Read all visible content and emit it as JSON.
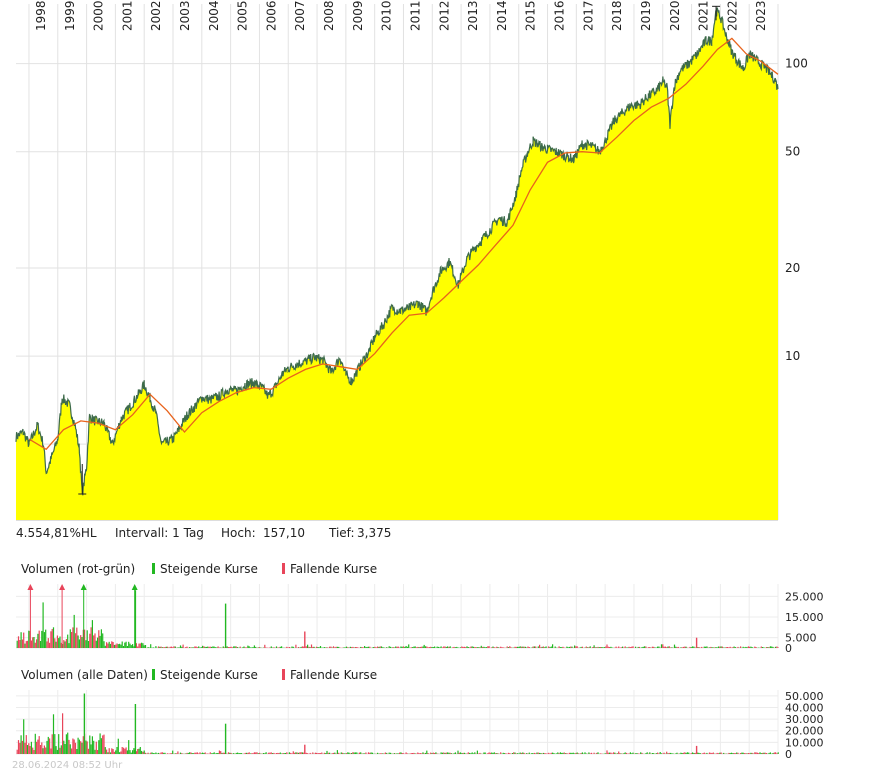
{
  "chart_data": [
    {
      "type": "area",
      "scale": "log",
      "x_ticks": [
        "1998",
        "1999",
        "2000",
        "2001",
        "2002",
        "2003",
        "2004",
        "2005",
        "2006",
        "2007",
        "2008",
        "2009",
        "2010",
        "2011",
        "2012",
        "2013",
        "2014",
        "2015",
        "2016",
        "2017",
        "2018",
        "2019",
        "2020",
        "2021",
        "2022",
        "2023"
      ],
      "y_ticks": [
        "100",
        "50",
        "20",
        "10"
      ],
      "y_tick_values": [
        100,
        50,
        20,
        10
      ],
      "x_range": [
        1997.55,
        2024.0
      ],
      "y_range": [
        2.75,
        160
      ],
      "series": [
        {
          "x": [
            1997.55,
            1997.8,
            1998.0,
            1998.3,
            1998.5,
            1998.6,
            1998.75,
            1999.0,
            1999.15,
            1999.4,
            1999.6,
            1999.75,
            1999.85,
            2000.0,
            2000.1,
            2000.3,
            2000.6,
            2000.9,
            2001.2,
            2001.5,
            2001.8,
            2002.0,
            2002.2,
            2002.4,
            2002.6,
            2002.8,
            2003.0,
            2003.2,
            2003.5,
            2003.8,
            2004.0,
            2004.3,
            2004.6,
            2004.9,
            2005.2,
            2005.5,
            2005.8,
            2006.1,
            2006.3,
            2006.5,
            2006.8,
            2007.0,
            2007.3,
            2007.6,
            2007.9,
            2008.2,
            2008.5,
            2008.8,
            2009.0,
            2009.2,
            2009.5,
            2009.8,
            2010.0,
            2010.3,
            2010.6,
            2010.9,
            2011.2,
            2011.5,
            2011.8,
            2012.0,
            2012.3,
            2012.6,
            2012.9,
            2013.2,
            2013.5,
            2013.8,
            2014.0,
            2014.3,
            2014.6,
            2014.9,
            2015.1,
            2015.3,
            2015.5,
            2015.8,
            2016.0,
            2016.3,
            2016.6,
            2016.9,
            2017.2,
            2017.5,
            2017.8,
            2018.0,
            2018.3,
            2018.6,
            2018.9,
            2019.2,
            2019.5,
            2019.8,
            2020.0,
            2020.15,
            2020.25,
            2020.4,
            2020.6,
            2020.9,
            2021.2,
            2021.5,
            2021.7,
            2021.85,
            2022.0,
            2022.2,
            2022.4,
            2022.6,
            2022.8,
            2023.0,
            2023.3,
            2023.6,
            2023.9,
            2024.0
          ],
          "y": [
            5.3,
            5.5,
            5.0,
            5.8,
            5.0,
            4.0,
            4.4,
            5.2,
            7.2,
            6.8,
            5.8,
            4.8,
            3.375,
            4.2,
            6.2,
            6.0,
            5.9,
            5.0,
            6.1,
            6.7,
            7.4,
            8.0,
            7.2,
            6.4,
            5.0,
            5.1,
            5.2,
            5.6,
            6.3,
            6.8,
            7.2,
            7.1,
            7.3,
            7.7,
            7.6,
            8.0,
            8.1,
            7.8,
            7.3,
            7.7,
            8.7,
            9.1,
            9.4,
            9.6,
            9.9,
            9.7,
            8.8,
            9.9,
            8.6,
            8.2,
            9.3,
            10.4,
            11.6,
            12.8,
            14.6,
            14.3,
            14.6,
            15.2,
            14.2,
            16.5,
            19.6,
            21.0,
            17.5,
            21.5,
            23.6,
            25.5,
            27.0,
            29.5,
            28.7,
            35.5,
            43.5,
            49.5,
            54.5,
            52.0,
            51.0,
            50.0,
            48.5,
            47.0,
            53.0,
            52.5,
            50.0,
            54.5,
            63.5,
            68.0,
            72.0,
            72.5,
            77.5,
            81.0,
            87.0,
            83.0,
            62.0,
            84.0,
            95.0,
            100.0,
            108.0,
            120.0,
            120.0,
            152.0,
            145.0,
            125.0,
            110.0,
            102.0,
            96.0,
            108.0,
            102.0,
            96.0,
            88.0,
            82.0
          ]
        },
        {
          "name": "moving average",
          "x": [
            1998.0,
            1998.6,
            1999.2,
            1999.8,
            2000.4,
            2001.0,
            2001.6,
            2002.2,
            2002.8,
            2003.4,
            2004.0,
            2004.6,
            2005.2,
            2005.8,
            2006.4,
            2007.0,
            2007.6,
            2008.2,
            2008.8,
            2009.4,
            2010.0,
            2010.6,
            2011.2,
            2011.8,
            2012.4,
            2013.0,
            2013.6,
            2014.2,
            2014.8,
            2015.4,
            2016.0,
            2016.6,
            2017.2,
            2017.8,
            2018.4,
            2019.0,
            2019.6,
            2020.2,
            2020.8,
            2021.4,
            2021.9,
            2022.4,
            2022.9,
            2023.4,
            2024.0
          ],
          "y": [
            5.2,
            4.8,
            5.6,
            6.0,
            5.9,
            5.6,
            6.3,
            7.4,
            6.5,
            5.5,
            6.4,
            7.0,
            7.5,
            7.8,
            7.7,
            8.4,
            9.0,
            9.4,
            9.2,
            9.0,
            10.2,
            12.0,
            13.8,
            14.0,
            15.8,
            18.0,
            20.5,
            24.0,
            28.0,
            37.0,
            46.0,
            49.5,
            50.0,
            49.5,
            56.0,
            64.0,
            71.0,
            76.0,
            85.0,
            98.0,
            112.0,
            122.0,
            108.0,
            102.0,
            92.0
          ]
        }
      ],
      "stats": {
        "hl_pct": "4.554,81%HL",
        "interval_label": "Intervall: 1 Tag",
        "high_label": "Hoch:",
        "high_value": "157,10",
        "low_label": "Tief:",
        "low_value": "3,375"
      },
      "colors": {
        "fill": "#ffff00",
        "price_line": "#3d6b4a",
        "moving_average": "#e8631c",
        "grid": "#e2e2e2"
      }
    },
    {
      "type": "bar",
      "title": "Volumen (rot-grün)",
      "legend": [
        "Steigende Kurse",
        "Fallende Kurse"
      ],
      "y_ticks": [
        "25.000",
        "15.000",
        "5.000",
        "0"
      ],
      "y_tick_values": [
        25000,
        15000,
        5000,
        0
      ],
      "y_range": [
        0,
        31000
      ],
      "spikes": [
        {
          "x": 2001.67,
          "value": 28000,
          "up": true
        },
        {
          "x": 2004.8,
          "value": 21500,
          "up": true
        },
        {
          "x": 2007.55,
          "value": 8000,
          "up": false
        },
        {
          "x": 2021.15,
          "value": 5000,
          "up": false
        }
      ],
      "colors": {
        "up": "#22b822",
        "down": "#e8455a"
      }
    },
    {
      "type": "bar",
      "title": "Volumen (alle Daten)",
      "legend": [
        "Steigende Kurse",
        "Fallende Kurse"
      ],
      "y_ticks": [
        "50.000",
        "40.000",
        "30.000",
        "20.000",
        "10.000",
        "0"
      ],
      "y_tick_values": [
        50000,
        40000,
        30000,
        20000,
        10000,
        0
      ],
      "y_range": [
        0,
        55000
      ],
      "spikes": [
        {
          "x": 1999.9,
          "value": 52000,
          "up": true
        },
        {
          "x": 2001.67,
          "value": 43000,
          "up": true
        },
        {
          "x": 2004.8,
          "value": 26000,
          "up": true
        },
        {
          "x": 2007.55,
          "value": 8000,
          "up": false
        },
        {
          "x": 2021.15,
          "value": 7000,
          "up": false
        }
      ],
      "colors": {
        "up": "#22b822",
        "down": "#e8455a"
      }
    }
  ],
  "footer_stamp": "28.06.2024 08:52 Uhr"
}
